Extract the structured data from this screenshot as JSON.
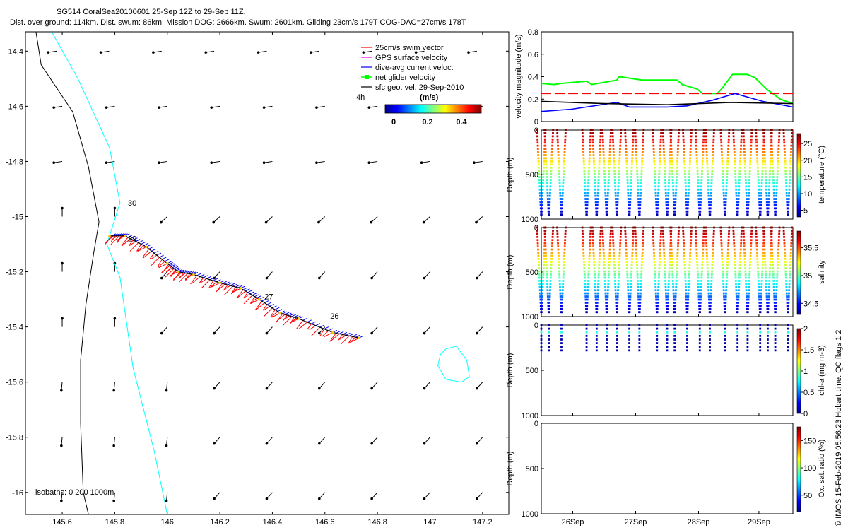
{
  "header": {
    "line1": "SG514 CoralSea20100601 25-Sep 12Z to 29-Sep 11Z.",
    "line2": "Dist. over ground: 114km. Dist. swum: 86km. Mission DOG: 2666km. Swum: 2601km. Gliding 23cm/s 179T COG-DAC=27cm/s 178T"
  },
  "credit": "© IMOS 15-Feb-2019 05:56:23 Hobart time. QC flags 1  2",
  "colors": {
    "swim": "#ff0000",
    "gps": "#ff00ff",
    "dac": "#0000ff",
    "net": "#00ff00",
    "geo": "#000000",
    "coast": "#000000",
    "isobath200": "#00ffff",
    "frame": "#000000"
  },
  "chart_data": [
    {
      "type": "map",
      "xticks": [
        "145.6",
        "145.8",
        "146",
        "146.2",
        "146.4",
        "146.6",
        "146.8",
        "147",
        "147.2"
      ],
      "yticks": [
        "-14.4",
        "-14.6",
        "-14.8",
        "-15",
        "-15.2",
        "-15.4",
        "-15.6",
        "-15.8",
        "-16"
      ],
      "xlim": [
        145.46,
        147.3
      ],
      "ylim": [
        -16.08,
        -14.33
      ],
      "legend": [
        {
          "label": "25cm/s swim vector",
          "color": "#ff0000",
          "marker": "arrow"
        },
        {
          "label": "GPS surface velocity",
          "color": "#ff00ff",
          "marker": "arrow"
        },
        {
          "label": "dive-avg current veloc.",
          "color": "#0000ff",
          "marker": "arrow"
        },
        {
          "label": "net glider velocity",
          "color": "#00ff00",
          "marker": "square"
        },
        {
          "label": "sfc geo. vel. 29-Sep-2010",
          "color": "#000000",
          "marker": "arrow"
        }
      ],
      "legend_position": "top-right",
      "duration_label": "4h",
      "colorbar": {
        "label": "(m/s)",
        "ticks": [
          "0",
          "0.2",
          "0.4"
        ],
        "range": [
          0,
          0.5
        ]
      },
      "isobath_label": "isobaths: 0   200  1000m",
      "day_labels": [
        {
          "text": "30",
          "lon": 145.85,
          "lat": -14.96
        },
        {
          "text": "29",
          "lon": 145.85,
          "lat": -15.09
        },
        {
          "text": "27",
          "lon": 146.37,
          "lat": -15.3
        },
        {
          "text": "26",
          "lon": 146.62,
          "lat": -15.37
        }
      ],
      "track": [
        {
          "lon": 146.73,
          "lat": -15.44
        },
        {
          "lon": 146.63,
          "lat": -15.42
        },
        {
          "lon": 146.5,
          "lat": -15.37
        },
        {
          "lon": 146.43,
          "lat": -15.35
        },
        {
          "lon": 146.35,
          "lat": -15.3
        },
        {
          "lon": 146.28,
          "lat": -15.26
        },
        {
          "lon": 146.2,
          "lat": -15.24
        },
        {
          "lon": 146.1,
          "lat": -15.21
        },
        {
          "lon": 146.04,
          "lat": -15.2
        },
        {
          "lon": 146.0,
          "lat": -15.17
        },
        {
          "lon": 145.92,
          "lat": -15.11
        },
        {
          "lon": 145.84,
          "lat": -15.07
        },
        {
          "lon": 145.78,
          "lat": -15.07
        }
      ],
      "coastline": [
        [
          145.5,
          -14.33
        ],
        [
          145.52,
          -14.45
        ],
        [
          145.64,
          -14.62
        ],
        [
          145.7,
          -14.82
        ],
        [
          145.74,
          -15.02
        ],
        [
          145.72,
          -15.13
        ],
        [
          145.69,
          -15.32
        ],
        [
          145.67,
          -15.52
        ],
        [
          145.67,
          -15.75
        ],
        [
          145.68,
          -16.0
        ],
        [
          145.7,
          -16.08
        ]
      ],
      "isobath_200": [
        [
          145.56,
          -14.33
        ],
        [
          145.66,
          -14.5
        ],
        [
          145.78,
          -14.75
        ],
        [
          145.82,
          -14.95
        ],
        [
          145.77,
          -15.1
        ],
        [
          145.82,
          -15.22
        ],
        [
          145.87,
          -15.55
        ],
        [
          145.95,
          -15.85
        ],
        [
          146.0,
          -16.08
        ]
      ],
      "isobath_island": [
        [
          147.06,
          -15.48
        ],
        [
          147.1,
          -15.47
        ],
        [
          147.14,
          -15.52
        ],
        [
          147.15,
          -15.58
        ],
        [
          147.12,
          -15.6
        ],
        [
          147.06,
          -15.59
        ],
        [
          147.03,
          -15.54
        ],
        [
          147.04,
          -15.5
        ],
        [
          147.06,
          -15.48
        ]
      ]
    },
    {
      "type": "line",
      "ylabel": "velocity magnitude (m/s)",
      "ylim": [
        0,
        0.8
      ],
      "yticks": [
        "0",
        "0.2",
        "0.4",
        "0.6",
        "0.8"
      ],
      "series": [
        {
          "color": "#00ff00",
          "x": [
            0.0,
            0.05,
            0.08,
            0.18,
            0.2,
            0.3,
            0.31,
            0.4,
            0.42,
            0.54,
            0.56,
            0.62,
            0.64,
            0.7,
            0.72,
            0.76,
            0.82,
            0.85,
            0.9,
            0.92,
            0.95,
            1.0
          ],
          "y": [
            0.34,
            0.33,
            0.34,
            0.36,
            0.33,
            0.37,
            0.4,
            0.37,
            0.37,
            0.37,
            0.33,
            0.29,
            0.25,
            0.25,
            0.3,
            0.42,
            0.42,
            0.39,
            0.28,
            0.25,
            0.2,
            0.16
          ]
        },
        {
          "color": "#ff0000",
          "dashed": true,
          "x": [
            0.0,
            0.06,
            0.2,
            0.42,
            0.48,
            0.64,
            0.72,
            1.0
          ],
          "y": [
            0.25,
            0.25,
            0.25,
            0.25,
            0.25,
            0.25,
            0.25,
            0.25
          ]
        },
        {
          "color": "#0000ff",
          "x": [
            0.0,
            0.12,
            0.3,
            0.35,
            0.5,
            0.58,
            0.68,
            0.77,
            0.88,
            1.0
          ],
          "y": [
            0.09,
            0.11,
            0.17,
            0.13,
            0.13,
            0.14,
            0.19,
            0.25,
            0.18,
            0.13
          ]
        },
        {
          "color": "#000000",
          "x": [
            0.0,
            0.25,
            0.5,
            0.75,
            1.0
          ],
          "y": [
            0.18,
            0.16,
            0.15,
            0.17,
            0.16
          ]
        }
      ]
    },
    {
      "type": "scatter",
      "ylabel": "Depth (m)",
      "clabel": "temperature (°C)",
      "ylim": [
        1000,
        0
      ],
      "yticks": [
        "0",
        "500",
        "1000"
      ],
      "cticks": [
        "5",
        "10",
        "15",
        "20",
        "25"
      ],
      "crange": [
        3,
        28
      ],
      "profiles": "dives_full"
    },
    {
      "type": "scatter",
      "ylabel": "Depth (m)",
      "clabel": "salinity",
      "ylim": [
        1000,
        0
      ],
      "yticks": [
        "0",
        "500",
        "1000"
      ],
      "cticks": [
        "34.5",
        "35",
        "35.5"
      ],
      "crange": [
        34.3,
        35.8
      ],
      "profiles": "dives_full"
    },
    {
      "type": "scatter",
      "ylabel": "Depth (m)",
      "clabel": "chl-a (mg m-3)",
      "ylim": [
        1000,
        0
      ],
      "yticks": [
        "0",
        "500",
        "1000"
      ],
      "cticks": [
        "0",
        "0.5",
        "1",
        "1.5",
        "2"
      ],
      "crange": [
        0,
        2
      ],
      "profiles": "chl"
    },
    {
      "type": "scatter",
      "ylabel": "Depth (m)",
      "clabel": "Ox. sat. ratio (%)",
      "ylim": [
        1000,
        0
      ],
      "yticks": [
        "0",
        "500",
        "1000"
      ],
      "cticks": [
        "50",
        "100",
        "150"
      ],
      "crange": [
        20,
        175
      ],
      "profiles": "none"
    }
  ],
  "time_axis": {
    "ticks": [
      "26Sep",
      "27Sep",
      "28Sep",
      "29Sep"
    ],
    "tick_fraction": [
      0.125,
      0.375,
      0.625,
      0.865
    ],
    "dives": [
      0.0,
      0.03,
      0.08,
      0.18,
      0.22,
      0.26,
      0.3,
      0.35,
      0.39,
      0.46,
      0.5,
      0.53,
      0.58,
      0.63,
      0.67,
      0.73,
      0.78,
      0.82,
      0.87,
      0.9,
      0.93,
      0.98
    ],
    "gaps_after": [
      1,
      7,
      16
    ]
  }
}
